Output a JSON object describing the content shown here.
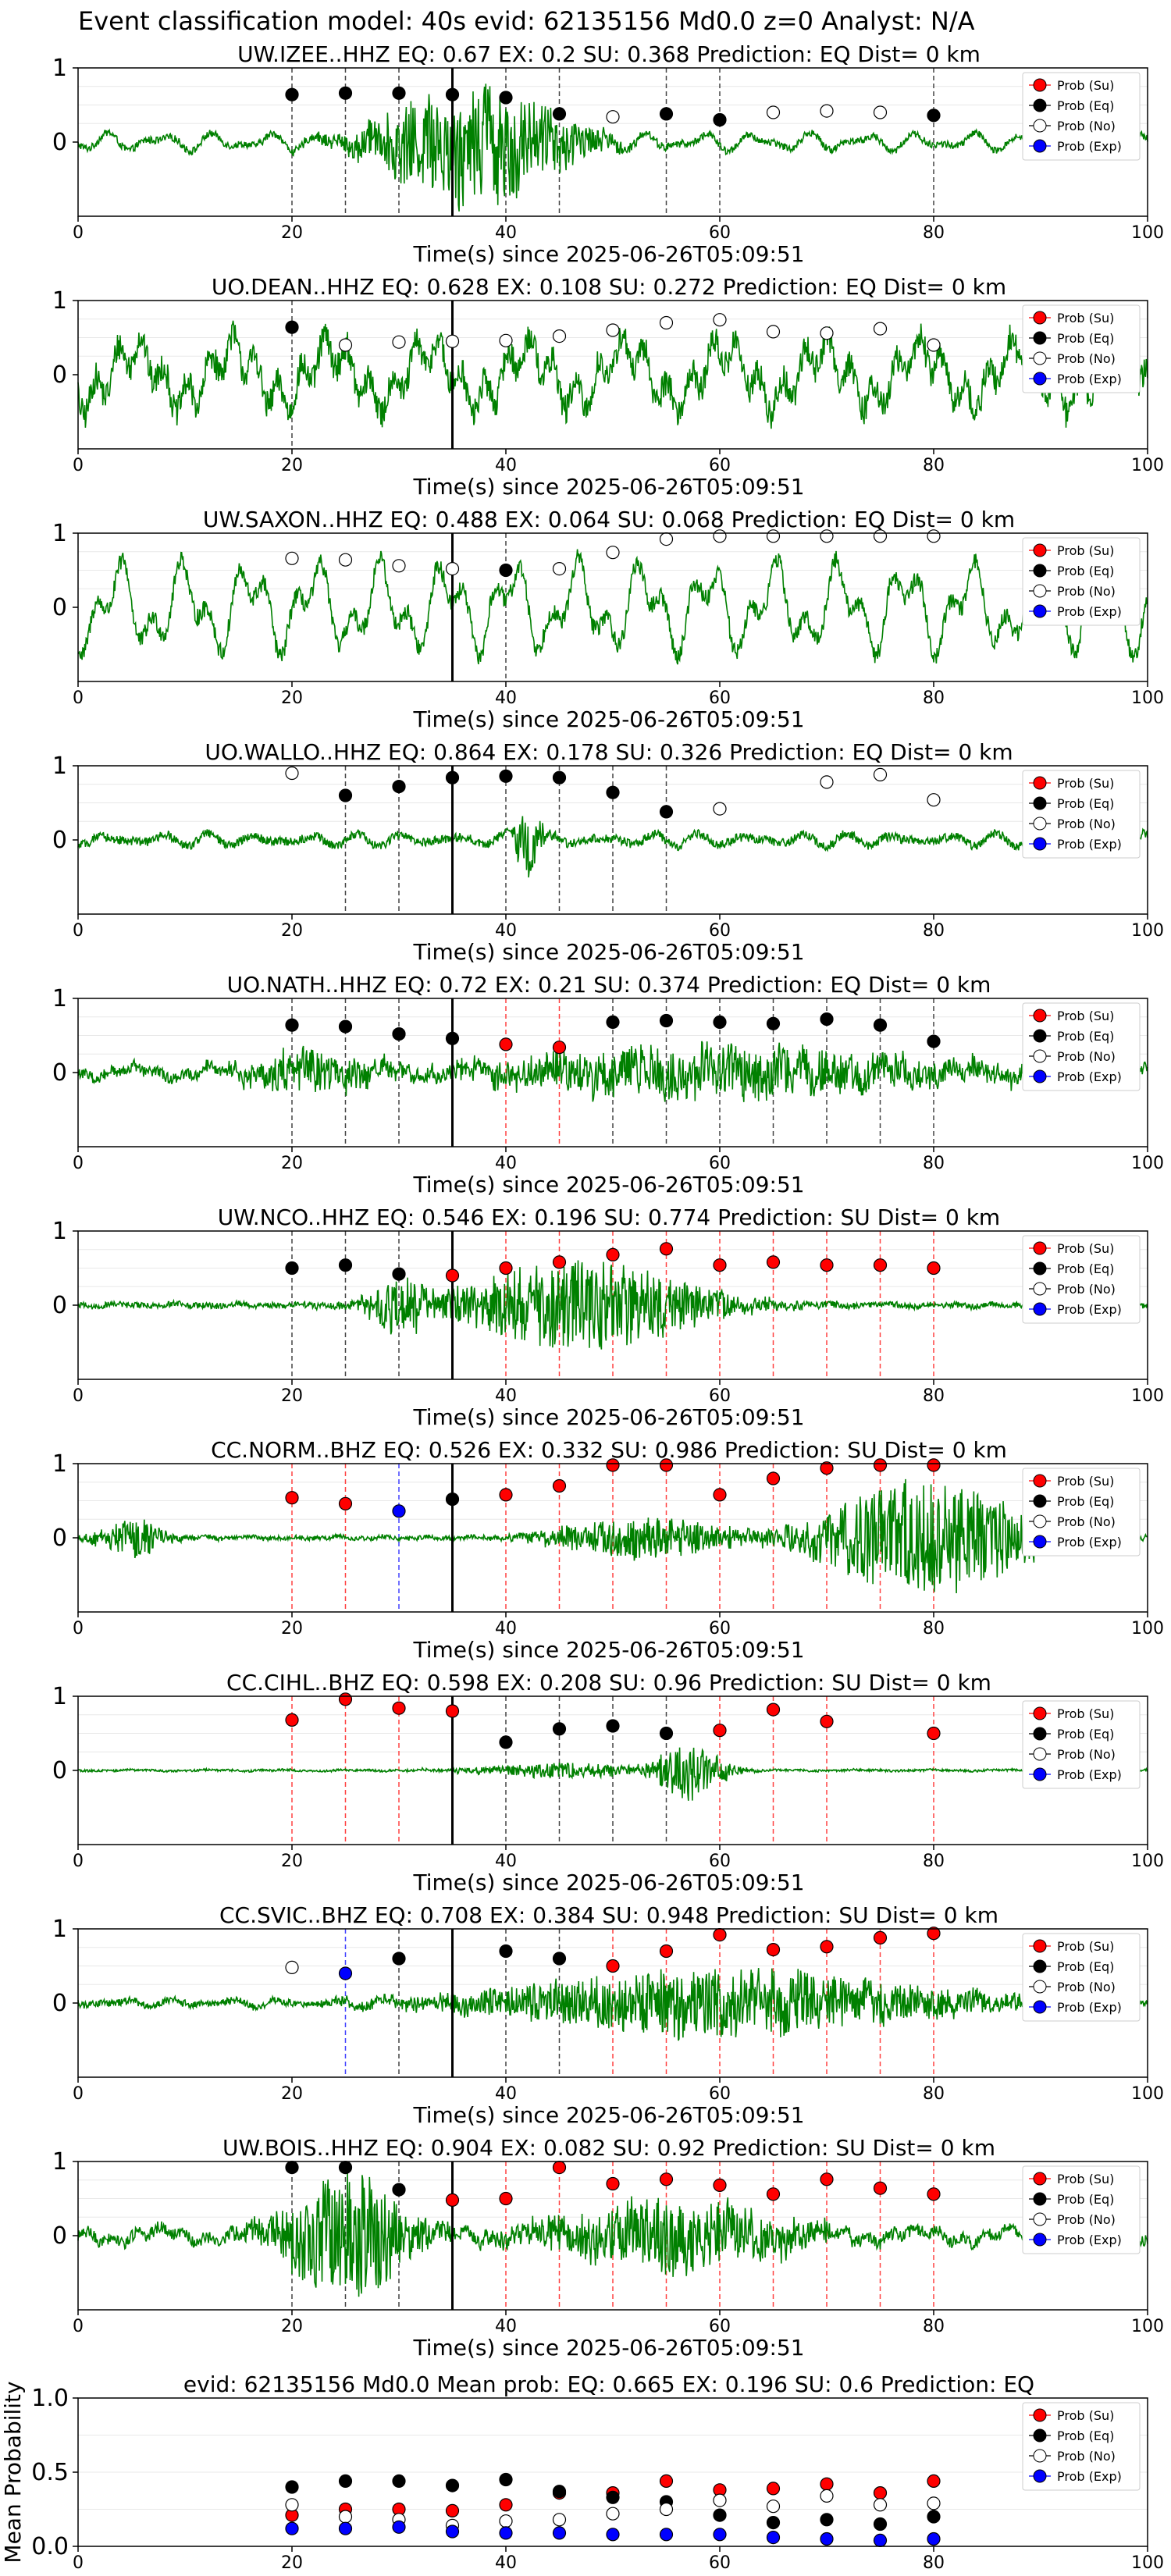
{
  "page_title": "Event classification model: 40s evid: 62135156 Md0.0 z=0 Analyst: N/A",
  "legend_labels": [
    "Prob (Su)",
    "Prob (Eq)",
    "Prob (No)",
    "Prob (Exp)"
  ],
  "colors": {
    "trace": "#008000",
    "su": "#ff0000",
    "eq": "#000000",
    "no": "#ffffff",
    "exp": "#0000ff"
  },
  "chart_data": [
    {
      "type": "line",
      "title": "UW.IZEE..HHZ   EQ: 0.67  EX: 0.2  SU: 0.368   Prediction: EQ    Dist= 0 km",
      "xlabel": "Time(s) since 2025-06-26T05:09:51",
      "xlim": [
        0,
        100
      ],
      "xticks": [
        "0",
        "20",
        "40",
        "60",
        "80",
        "100"
      ],
      "yticks": [
        "1",
        "0"
      ],
      "ylim": [
        -1,
        1
      ],
      "event_line_x": 35,
      "trace": {
        "amp": 0.13,
        "noise": 0.05,
        "events": [
          {
            "t": 37,
            "a": 0.85,
            "w": 10
          }
        ]
      },
      "windows": [
        {
          "x": 20,
          "cls": "eq",
          "p": 0.64
        },
        {
          "x": 25,
          "cls": "eq",
          "p": 0.66
        },
        {
          "x": 30,
          "cls": "eq",
          "p": 0.66
        },
        {
          "x": 35,
          "cls": "eq",
          "p": 0.64
        },
        {
          "x": 40,
          "cls": "eq",
          "p": 0.6
        },
        {
          "x": 45,
          "cls": "eq",
          "p": 0.38
        },
        {
          "x": 50,
          "cls": "no",
          "p": 0.34
        },
        {
          "x": 55,
          "cls": "eq",
          "p": 0.38
        },
        {
          "x": 60,
          "cls": "eq",
          "p": 0.3
        },
        {
          "x": 65,
          "cls": "no",
          "p": 0.4
        },
        {
          "x": 70,
          "cls": "no",
          "p": 0.42
        },
        {
          "x": 75,
          "cls": "no",
          "p": 0.4
        },
        {
          "x": 80,
          "cls": "eq",
          "p": 0.36
        }
      ]
    },
    {
      "type": "line",
      "title": "UO.DEAN..HHZ   EQ: 0.628  EX: 0.108  SU: 0.272   Prediction: EQ    Dist= 0 km",
      "xlabel": "Time(s) since 2025-06-26T05:09:51",
      "xlim": [
        0,
        100
      ],
      "xticks": [
        "0",
        "20",
        "40",
        "60",
        "80",
        "100"
      ],
      "yticks": [
        "1",
        "0"
      ],
      "ylim": [
        -1,
        1
      ],
      "event_line_x": 35,
      "trace": {
        "amp": 0.55,
        "noise": 0.2,
        "events": []
      },
      "windows": [
        {
          "x": 20,
          "cls": "eq",
          "p": 0.64
        },
        {
          "x": 25,
          "cls": "no",
          "p": 0.4
        },
        {
          "x": 30,
          "cls": "no",
          "p": 0.44
        },
        {
          "x": 35,
          "cls": "no",
          "p": 0.45
        },
        {
          "x": 40,
          "cls": "no",
          "p": 0.46
        },
        {
          "x": 45,
          "cls": "no",
          "p": 0.52
        },
        {
          "x": 50,
          "cls": "no",
          "p": 0.6
        },
        {
          "x": 55,
          "cls": "no",
          "p": 0.7
        },
        {
          "x": 60,
          "cls": "no",
          "p": 0.74
        },
        {
          "x": 65,
          "cls": "no",
          "p": 0.58
        },
        {
          "x": 70,
          "cls": "no",
          "p": 0.56
        },
        {
          "x": 75,
          "cls": "no",
          "p": 0.62
        },
        {
          "x": 80,
          "cls": "no",
          "p": 0.4
        }
      ]
    },
    {
      "type": "line",
      "title": "UW.SAXON..HHZ   EQ: 0.488  EX: 0.064  SU: 0.068   Prediction: EQ    Dist= 0 km",
      "xlabel": "Time(s) since 2025-06-26T05:09:51",
      "xlim": [
        0,
        100
      ],
      "xticks": [
        "0",
        "20",
        "40",
        "60",
        "80",
        "100"
      ],
      "yticks": [
        "1",
        "0"
      ],
      "ylim": [
        -1,
        1
      ],
      "event_line_x": 35,
      "trace": {
        "amp": 0.68,
        "noise": 0.12,
        "events": []
      },
      "windows": [
        {
          "x": 20,
          "cls": "no",
          "p": 0.66
        },
        {
          "x": 25,
          "cls": "no",
          "p": 0.64
        },
        {
          "x": 30,
          "cls": "no",
          "p": 0.56
        },
        {
          "x": 35,
          "cls": "no",
          "p": 0.52
        },
        {
          "x": 40,
          "cls": "eq",
          "p": 0.5
        },
        {
          "x": 45,
          "cls": "no",
          "p": 0.52
        },
        {
          "x": 50,
          "cls": "no",
          "p": 0.74
        },
        {
          "x": 55,
          "cls": "no",
          "p": 0.92
        },
        {
          "x": 60,
          "cls": "no",
          "p": 0.96
        },
        {
          "x": 65,
          "cls": "no",
          "p": 0.96
        },
        {
          "x": 70,
          "cls": "no",
          "p": 0.96
        },
        {
          "x": 75,
          "cls": "no",
          "p": 0.96
        },
        {
          "x": 80,
          "cls": "no",
          "p": 0.96
        }
      ]
    },
    {
      "type": "line",
      "title": "UO.WALLO..HHZ   EQ: 0.864  EX: 0.178  SU: 0.326   Prediction: EQ    Dist= 0 km",
      "xlabel": "Time(s) since 2025-06-26T05:09:51",
      "xlim": [
        0,
        100
      ],
      "xticks": [
        "0",
        "20",
        "40",
        "60",
        "80",
        "100"
      ],
      "yticks": [
        "1",
        "0"
      ],
      "ylim": [
        -1,
        1
      ],
      "event_line_x": 35,
      "trace": {
        "amp": 0.09,
        "noise": 0.06,
        "events": [
          {
            "t": 42,
            "a": 0.45,
            "w": 1.5
          }
        ]
      },
      "windows": [
        {
          "x": 20,
          "cls": "no",
          "p": 0.9
        },
        {
          "x": 25,
          "cls": "eq",
          "p": 0.6
        },
        {
          "x": 30,
          "cls": "eq",
          "p": 0.72
        },
        {
          "x": 35,
          "cls": "eq",
          "p": 0.84
        },
        {
          "x": 40,
          "cls": "eq",
          "p": 0.86
        },
        {
          "x": 45,
          "cls": "eq",
          "p": 0.84
        },
        {
          "x": 50,
          "cls": "eq",
          "p": 0.64
        },
        {
          "x": 55,
          "cls": "eq",
          "p": 0.38
        },
        {
          "x": 60,
          "cls": "no",
          "p": 0.42
        },
        {
          "x": 70,
          "cls": "no",
          "p": 0.78
        },
        {
          "x": 75,
          "cls": "no",
          "p": 0.88
        },
        {
          "x": 80,
          "cls": "no",
          "p": 0.54
        }
      ]
    },
    {
      "type": "line",
      "title": "UO.NATH..HHZ   EQ: 0.72  EX: 0.21  SU: 0.374   Prediction: EQ    Dist= 0 km",
      "xlabel": "Time(s) since 2025-06-26T05:09:51",
      "xlim": [
        0,
        100
      ],
      "xticks": [
        "0",
        "20",
        "40",
        "60",
        "80",
        "100"
      ],
      "yticks": [
        "1",
        "0"
      ],
      "ylim": [
        -1,
        1
      ],
      "event_line_x": 35,
      "trace": {
        "amp": 0.1,
        "noise": 0.08,
        "events": [
          {
            "t": 22,
            "a": 0.25,
            "w": 8
          },
          {
            "t": 60,
            "a": 0.35,
            "w": 25
          }
        ]
      },
      "windows": [
        {
          "x": 20,
          "cls": "eq",
          "p": 0.64
        },
        {
          "x": 25,
          "cls": "eq",
          "p": 0.62
        },
        {
          "x": 30,
          "cls": "eq",
          "p": 0.52
        },
        {
          "x": 35,
          "cls": "eq",
          "p": 0.46
        },
        {
          "x": 40,
          "cls": "su",
          "p": 0.38
        },
        {
          "x": 45,
          "cls": "su",
          "p": 0.34
        },
        {
          "x": 50,
          "cls": "eq",
          "p": 0.68
        },
        {
          "x": 55,
          "cls": "eq",
          "p": 0.7
        },
        {
          "x": 60,
          "cls": "eq",
          "p": 0.68
        },
        {
          "x": 65,
          "cls": "eq",
          "p": 0.66
        },
        {
          "x": 70,
          "cls": "eq",
          "p": 0.72
        },
        {
          "x": 75,
          "cls": "eq",
          "p": 0.64
        },
        {
          "x": 80,
          "cls": "eq",
          "p": 0.42
        }
      ]
    },
    {
      "type": "line",
      "title": "UW.NCO..HHZ   EQ: 0.546  EX: 0.196  SU: 0.774   Prediction: SU    Dist= 0 km",
      "xlabel": "Time(s) since 2025-06-26T05:09:51",
      "xlim": [
        0,
        100
      ],
      "xticks": [
        "0",
        "20",
        "40",
        "60",
        "80",
        "100"
      ],
      "yticks": [
        "1",
        "0"
      ],
      "ylim": [
        -1,
        1
      ],
      "event_line_x": 35,
      "trace": {
        "amp": 0.02,
        "noise": 0.04,
        "events": [
          {
            "t": 30,
            "a": 0.45,
            "w": 3
          },
          {
            "t": 47,
            "a": 0.6,
            "w": 14
          }
        ]
      },
      "windows": [
        {
          "x": 20,
          "cls": "eq",
          "p": 0.5
        },
        {
          "x": 25,
          "cls": "eq",
          "p": 0.54
        },
        {
          "x": 30,
          "cls": "eq",
          "p": 0.42
        },
        {
          "x": 35,
          "cls": "su",
          "p": 0.4
        },
        {
          "x": 40,
          "cls": "su",
          "p": 0.5
        },
        {
          "x": 45,
          "cls": "su",
          "p": 0.58
        },
        {
          "x": 50,
          "cls": "su",
          "p": 0.68
        },
        {
          "x": 55,
          "cls": "su",
          "p": 0.76
        },
        {
          "x": 60,
          "cls": "su",
          "p": 0.54
        },
        {
          "x": 65,
          "cls": "su",
          "p": 0.58
        },
        {
          "x": 70,
          "cls": "su",
          "p": 0.54
        },
        {
          "x": 75,
          "cls": "su",
          "p": 0.54
        },
        {
          "x": 80,
          "cls": "su",
          "p": 0.5
        }
      ]
    },
    {
      "type": "line",
      "title": "CC.NORM..BHZ   EQ: 0.526  EX: 0.332  SU: 0.986   Prediction: SU    Dist= 0 km",
      "xlabel": "Time(s) since 2025-06-26T05:09:51",
      "xlim": [
        0,
        100
      ],
      "xticks": [
        "0",
        "20",
        "40",
        "60",
        "80",
        "100"
      ],
      "yticks": [
        "1",
        "0"
      ],
      "ylim": [
        -1,
        1
      ],
      "event_line_x": 35,
      "trace": {
        "amp": 0.02,
        "noise": 0.03,
        "events": [
          {
            "t": 5,
            "a": 0.25,
            "w": 4
          },
          {
            "t": 53,
            "a": 0.28,
            "w": 10
          },
          {
            "t": 79,
            "a": 0.8,
            "w": 12
          }
        ]
      },
      "windows": [
        {
          "x": 20,
          "cls": "su",
          "p": 0.54
        },
        {
          "x": 25,
          "cls": "su",
          "p": 0.46
        },
        {
          "x": 30,
          "cls": "exp",
          "p": 0.36
        },
        {
          "x": 35,
          "cls": "eq",
          "p": 0.52
        },
        {
          "x": 40,
          "cls": "su",
          "p": 0.58
        },
        {
          "x": 45,
          "cls": "su",
          "p": 0.7
        },
        {
          "x": 50,
          "cls": "su",
          "p": 0.98
        },
        {
          "x": 55,
          "cls": "su",
          "p": 0.98
        },
        {
          "x": 60,
          "cls": "su",
          "p": 0.58
        },
        {
          "x": 65,
          "cls": "su",
          "p": 0.8
        },
        {
          "x": 70,
          "cls": "su",
          "p": 0.94
        },
        {
          "x": 75,
          "cls": "su",
          "p": 0.98
        },
        {
          "x": 80,
          "cls": "su",
          "p": 0.98
        }
      ]
    },
    {
      "type": "line",
      "title": "CC.CIHL..BHZ   EQ: 0.598  EX: 0.208  SU: 0.96   Prediction: SU    Dist= 0 km",
      "xlabel": "Time(s) since 2025-06-26T05:09:51",
      "xlim": [
        0,
        100
      ],
      "xticks": [
        "0",
        "20",
        "40",
        "60",
        "80",
        "100"
      ],
      "yticks": [
        "1",
        "0"
      ],
      "ylim": [
        -1,
        1
      ],
      "event_line_x": 35,
      "trace": {
        "amp": 0.01,
        "noise": 0.015,
        "events": [
          {
            "t": 45,
            "a": 0.1,
            "w": 10
          },
          {
            "t": 57,
            "a": 0.4,
            "w": 4
          }
        ]
      },
      "windows": [
        {
          "x": 20,
          "cls": "su",
          "p": 0.68
        },
        {
          "x": 25,
          "cls": "su",
          "p": 0.96
        },
        {
          "x": 30,
          "cls": "su",
          "p": 0.84
        },
        {
          "x": 35,
          "cls": "su",
          "p": 0.8
        },
        {
          "x": 40,
          "cls": "eq",
          "p": 0.38
        },
        {
          "x": 45,
          "cls": "eq",
          "p": 0.56
        },
        {
          "x": 50,
          "cls": "eq",
          "p": 0.6
        },
        {
          "x": 55,
          "cls": "eq",
          "p": 0.5
        },
        {
          "x": 60,
          "cls": "su",
          "p": 0.54
        },
        {
          "x": 65,
          "cls": "su",
          "p": 0.82
        },
        {
          "x": 70,
          "cls": "su",
          "p": 0.66
        },
        {
          "x": 80,
          "cls": "su",
          "p": 0.5
        }
      ]
    },
    {
      "type": "line",
      "title": "CC.SVIC..BHZ   EQ: 0.708  EX: 0.384  SU: 0.948   Prediction: SU    Dist= 0 km",
      "xlabel": "Time(s) since 2025-06-26T05:09:51",
      "xlim": [
        0,
        100
      ],
      "xticks": [
        "0",
        "20",
        "40",
        "60",
        "80",
        "100"
      ],
      "yticks": [
        "1",
        "0"
      ],
      "ylim": [
        -1,
        1
      ],
      "event_line_x": 35,
      "trace": {
        "amp": 0.05,
        "noise": 0.05,
        "events": [
          {
            "t": 60,
            "a": 0.45,
            "w": 25
          }
        ]
      },
      "windows": [
        {
          "x": 20,
          "cls": "no",
          "p": 0.48
        },
        {
          "x": 25,
          "cls": "exp",
          "p": 0.4
        },
        {
          "x": 30,
          "cls": "eq",
          "p": 0.6
        },
        {
          "x": 40,
          "cls": "eq",
          "p": 0.7
        },
        {
          "x": 45,
          "cls": "eq",
          "p": 0.6
        },
        {
          "x": 50,
          "cls": "su",
          "p": 0.5
        },
        {
          "x": 55,
          "cls": "su",
          "p": 0.7
        },
        {
          "x": 60,
          "cls": "su",
          "p": 0.92
        },
        {
          "x": 65,
          "cls": "su",
          "p": 0.72
        },
        {
          "x": 70,
          "cls": "su",
          "p": 0.76
        },
        {
          "x": 75,
          "cls": "su",
          "p": 0.88
        },
        {
          "x": 80,
          "cls": "su",
          "p": 0.94
        }
      ]
    },
    {
      "type": "line",
      "title": "UW.BOIS..HHZ   EQ: 0.904  EX: 0.082  SU: 0.92   Prediction: SU    Dist= 0 km",
      "xlabel": "Time(s) since 2025-06-26T05:09:51",
      "xlim": [
        0,
        100
      ],
      "xticks": [
        "0",
        "20",
        "40",
        "60",
        "80",
        "100"
      ],
      "yticks": [
        "1",
        "0"
      ],
      "ylim": [
        -1,
        1
      ],
      "event_line_x": 35,
      "trace": {
        "amp": 0.12,
        "noise": 0.08,
        "events": [
          {
            "t": 25,
            "a": 0.85,
            "w": 7
          },
          {
            "t": 55,
            "a": 0.45,
            "w": 14
          }
        ]
      },
      "windows": [
        {
          "x": 20,
          "cls": "eq",
          "p": 0.92
        },
        {
          "x": 25,
          "cls": "eq",
          "p": 0.92
        },
        {
          "x": 30,
          "cls": "eq",
          "p": 0.62
        },
        {
          "x": 35,
          "cls": "su",
          "p": 0.48
        },
        {
          "x": 40,
          "cls": "su",
          "p": 0.5
        },
        {
          "x": 45,
          "cls": "su",
          "p": 0.92
        },
        {
          "x": 50,
          "cls": "su",
          "p": 0.7
        },
        {
          "x": 55,
          "cls": "su",
          "p": 0.76
        },
        {
          "x": 60,
          "cls": "su",
          "p": 0.68
        },
        {
          "x": 65,
          "cls": "su",
          "p": 0.56
        },
        {
          "x": 70,
          "cls": "su",
          "p": 0.76
        },
        {
          "x": 75,
          "cls": "su",
          "p": 0.64
        },
        {
          "x": 80,
          "cls": "su",
          "p": 0.56
        }
      ]
    },
    {
      "type": "scatter",
      "title": "evid: 62135156  Md0.0   Mean prob:   EQ: 0.665  EX: 0.196  SU: 0.6   Prediction: EQ",
      "ylabel": "Mean Probability",
      "xlim": [
        0,
        100
      ],
      "ylim": [
        0,
        1
      ],
      "xticks": [
        "0",
        "20",
        "40",
        "60",
        "80",
        "100"
      ],
      "yticks": [
        "1.0",
        "0.5",
        "0.0"
      ],
      "x": [
        20,
        25,
        30,
        35,
        40,
        45,
        50,
        55,
        60,
        65,
        70,
        75,
        80
      ],
      "series": [
        {
          "name": "Prob (Su)",
          "cls": "su",
          "values": [
            0.21,
            0.25,
            0.25,
            0.24,
            0.28,
            0.36,
            0.36,
            0.44,
            0.38,
            0.39,
            0.42,
            0.36,
            0.44
          ]
        },
        {
          "name": "Prob (Eq)",
          "cls": "eq",
          "values": [
            0.4,
            0.44,
            0.44,
            0.41,
            0.45,
            0.37,
            0.33,
            0.3,
            0.21,
            0.16,
            0.18,
            0.15,
            0.2
          ]
        },
        {
          "name": "Prob (No)",
          "cls": "no",
          "values": [
            0.28,
            0.2,
            0.18,
            0.14,
            0.17,
            0.18,
            0.22,
            0.25,
            0.31,
            0.27,
            0.34,
            0.28,
            0.29
          ]
        },
        {
          "name": "Prob (Exp)",
          "cls": "exp",
          "values": [
            0.12,
            0.12,
            0.13,
            0.1,
            0.09,
            0.09,
            0.08,
            0.08,
            0.08,
            0.06,
            0.05,
            0.04,
            0.05
          ]
        }
      ]
    }
  ]
}
